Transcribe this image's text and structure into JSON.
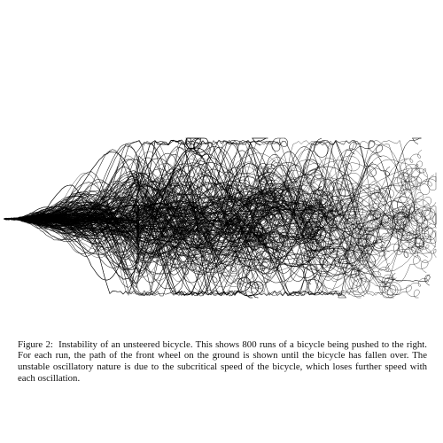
{
  "figure": {
    "label": "Figure 2:",
    "caption": "Instability of an unsteered bicycle. This shows 800 runs of a bicycle being pushed to the right. For each run, the path of the front wheel on the ground is shown until the bicycle has fallen over. The unstable oscillatory nature is due to the subcritical speed of the bicycle, which loses further speed with each oscillation."
  },
  "plot": {
    "stroke_color": "#000000",
    "background_color": "#ffffff",
    "runs_shown": 800
  }
}
